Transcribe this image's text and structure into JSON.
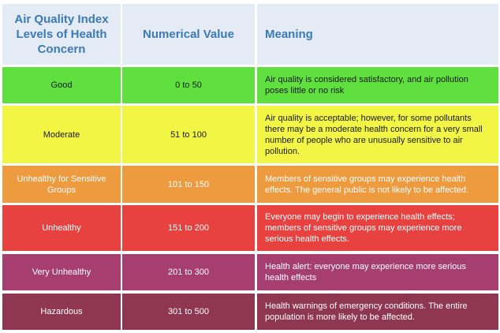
{
  "table": {
    "header": [
      "Air Quality Index Levels of Health Concern",
      "Numerical Value",
      "Meaning"
    ],
    "rows": [
      [
        "Good",
        "0 to 50",
        "Air quality is considered satisfactory, and air pollution poses little or no risk"
      ],
      [
        "Moderate",
        "51 to 100",
        "Air quality is acceptable; however, for some pollutants there may be a moderate health concern for a very small number of people who are unusually sensitive to air pollution."
      ],
      [
        "Unhealthy for Sensitive Groups",
        "101 to 150",
        "Members of sensitive groups may experience health effects. The general public is not likely to be affected."
      ],
      [
        "Unhealthy",
        "151 to 200",
        "Everyone may begin to experience health effects; members of sensitive groups may experience more serious health effects."
      ],
      [
        "Very Unhealthy",
        "201 to 300",
        "Health alert: everyone may experience more serious health effects"
      ],
      [
        "Hazardous",
        "301 to 500",
        "Health warnings of emergency conditions. The entire population is more likely to be affected."
      ]
    ]
  }
}
